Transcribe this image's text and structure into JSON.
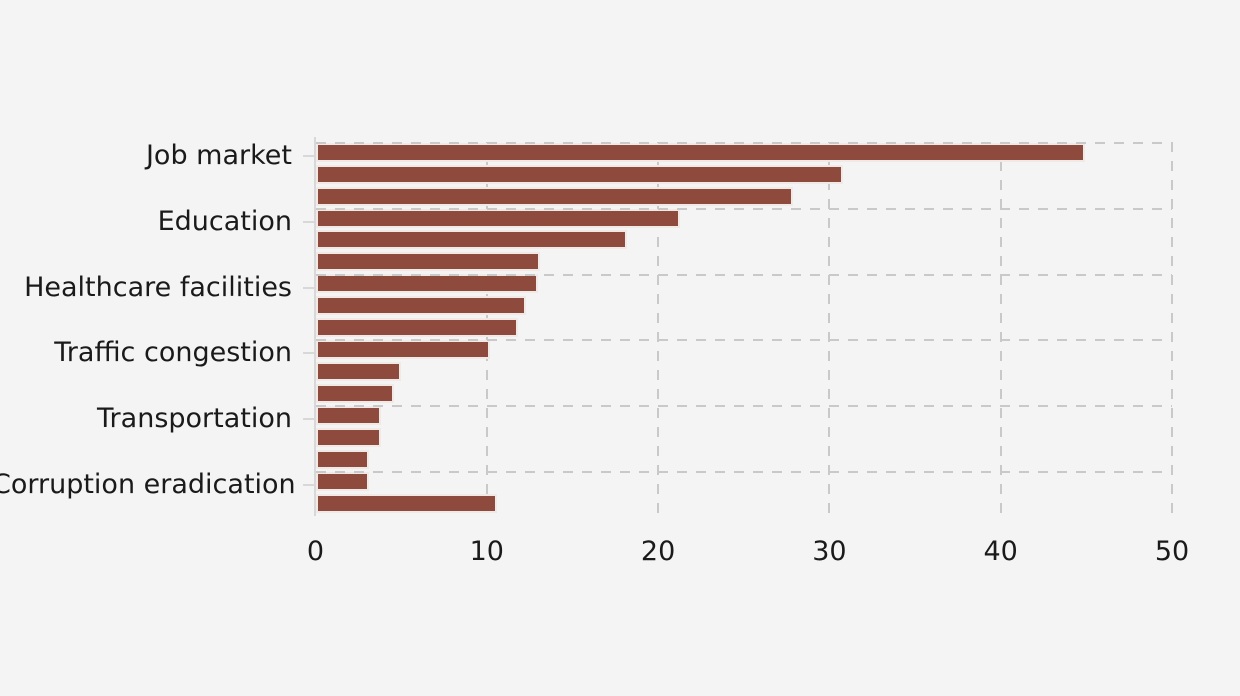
{
  "chart_data": {
    "type": "bar",
    "orientation": "horizontal",
    "title": "",
    "xlabel": "",
    "ylabel": "",
    "xlim": [
      0,
      50
    ],
    "xticks": [
      "0",
      "10",
      "20",
      "30",
      "40",
      "50"
    ],
    "grid": "dashed",
    "legend": null,
    "note": "17 bars; only every 3rd bar has a y-axis label",
    "bars": [
      {
        "label": "Job market",
        "value": 44.9
      },
      {
        "label": "",
        "value": 30.8
      },
      {
        "label": "",
        "value": 27.9
      },
      {
        "label": "Education",
        "value": 21.3
      },
      {
        "label": "",
        "value": 18.2
      },
      {
        "label": "",
        "value": 13.1
      },
      {
        "label": "Healthcare facilities",
        "value": 13.0
      },
      {
        "label": "",
        "value": 12.3
      },
      {
        "label": "",
        "value": 11.8
      },
      {
        "label": "Traffic congestion",
        "value": 10.2
      },
      {
        "label": "",
        "value": 5.0
      },
      {
        "label": "",
        "value": 4.6
      },
      {
        "label": "Transportation",
        "value": 3.8
      },
      {
        "label": "",
        "value": 3.8
      },
      {
        "label": "",
        "value": 3.1
      },
      {
        "label": "Corruption eradication",
        "value": 3.1
      },
      {
        "label": "",
        "value": 10.6
      }
    ],
    "colors": {
      "bar": "#8E4A3D",
      "bar_edge": "#F0E9E6",
      "background": "#F5F4F4",
      "grid": "#C9C9C9",
      "axis": "#D8D8D8",
      "text": "#1A1A1A"
    }
  }
}
